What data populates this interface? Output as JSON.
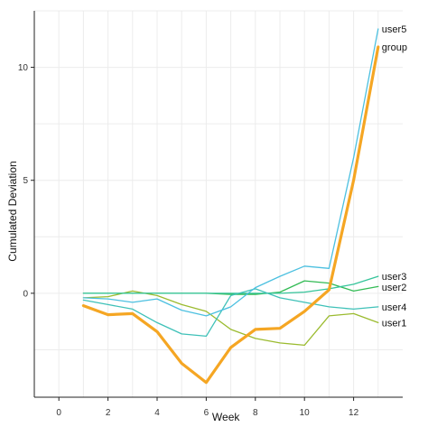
{
  "chart_data": {
    "type": "line",
    "title": "",
    "xlabel": "Week",
    "ylabel": "Cumulated Deviation",
    "xlim": [
      -1,
      14
    ],
    "ylim": [
      -4.6,
      12.5
    ],
    "x_ticks": [
      0,
      2,
      4,
      6,
      8,
      10,
      12
    ],
    "y_ticks": [
      0,
      5,
      10
    ],
    "grid": true,
    "legend": "direct labels at line ends (right)",
    "x": [
      1,
      2,
      3,
      4,
      5,
      6,
      7,
      8,
      9,
      10,
      11,
      12,
      13
    ],
    "series": [
      {
        "name": "user1",
        "color": "#9bbb2f",
        "stroke_width": "thin",
        "values": [
          -0.2,
          -0.15,
          0.1,
          -0.1,
          -0.5,
          -0.8,
          -1.6,
          -2.0,
          -2.2,
          -2.3,
          -1.0,
          -0.9,
          -1.3
        ]
      },
      {
        "name": "user2",
        "color": "#33bb55",
        "stroke_width": "thin",
        "values": [
          0.0,
          0.0,
          0.0,
          0.0,
          0.0,
          0.0,
          -0.05,
          -0.05,
          0.05,
          0.55,
          0.45,
          0.1,
          0.3
        ]
      },
      {
        "name": "user3",
        "color": "#35c49a",
        "stroke_width": "thin",
        "values": [
          0.0,
          0.0,
          0.0,
          0.0,
          0.0,
          0.0,
          0.0,
          0.0,
          0.0,
          0.05,
          0.2,
          0.4,
          0.75
        ]
      },
      {
        "name": "user4",
        "color": "#3fc1b8",
        "stroke_width": "thin",
        "values": [
          -0.3,
          -0.5,
          -0.7,
          -1.3,
          -1.8,
          -1.9,
          -0.1,
          0.2,
          -0.2,
          -0.4,
          -0.6,
          -0.7,
          -0.6
        ]
      },
      {
        "name": "user5",
        "color": "#4cc0e0",
        "stroke_width": "thin",
        "values": [
          -0.2,
          -0.25,
          -0.4,
          -0.25,
          -0.75,
          -1.0,
          -0.6,
          0.25,
          0.75,
          1.2,
          1.1,
          6.0,
          11.7
        ]
      },
      {
        "name": "group",
        "color": "#f5a623",
        "stroke_width": "thick",
        "values": [
          -0.55,
          -0.95,
          -0.9,
          -1.7,
          -3.1,
          -3.95,
          -2.4,
          -1.6,
          -1.55,
          -0.8,
          0.15,
          5.0,
          10.9
        ]
      }
    ]
  }
}
